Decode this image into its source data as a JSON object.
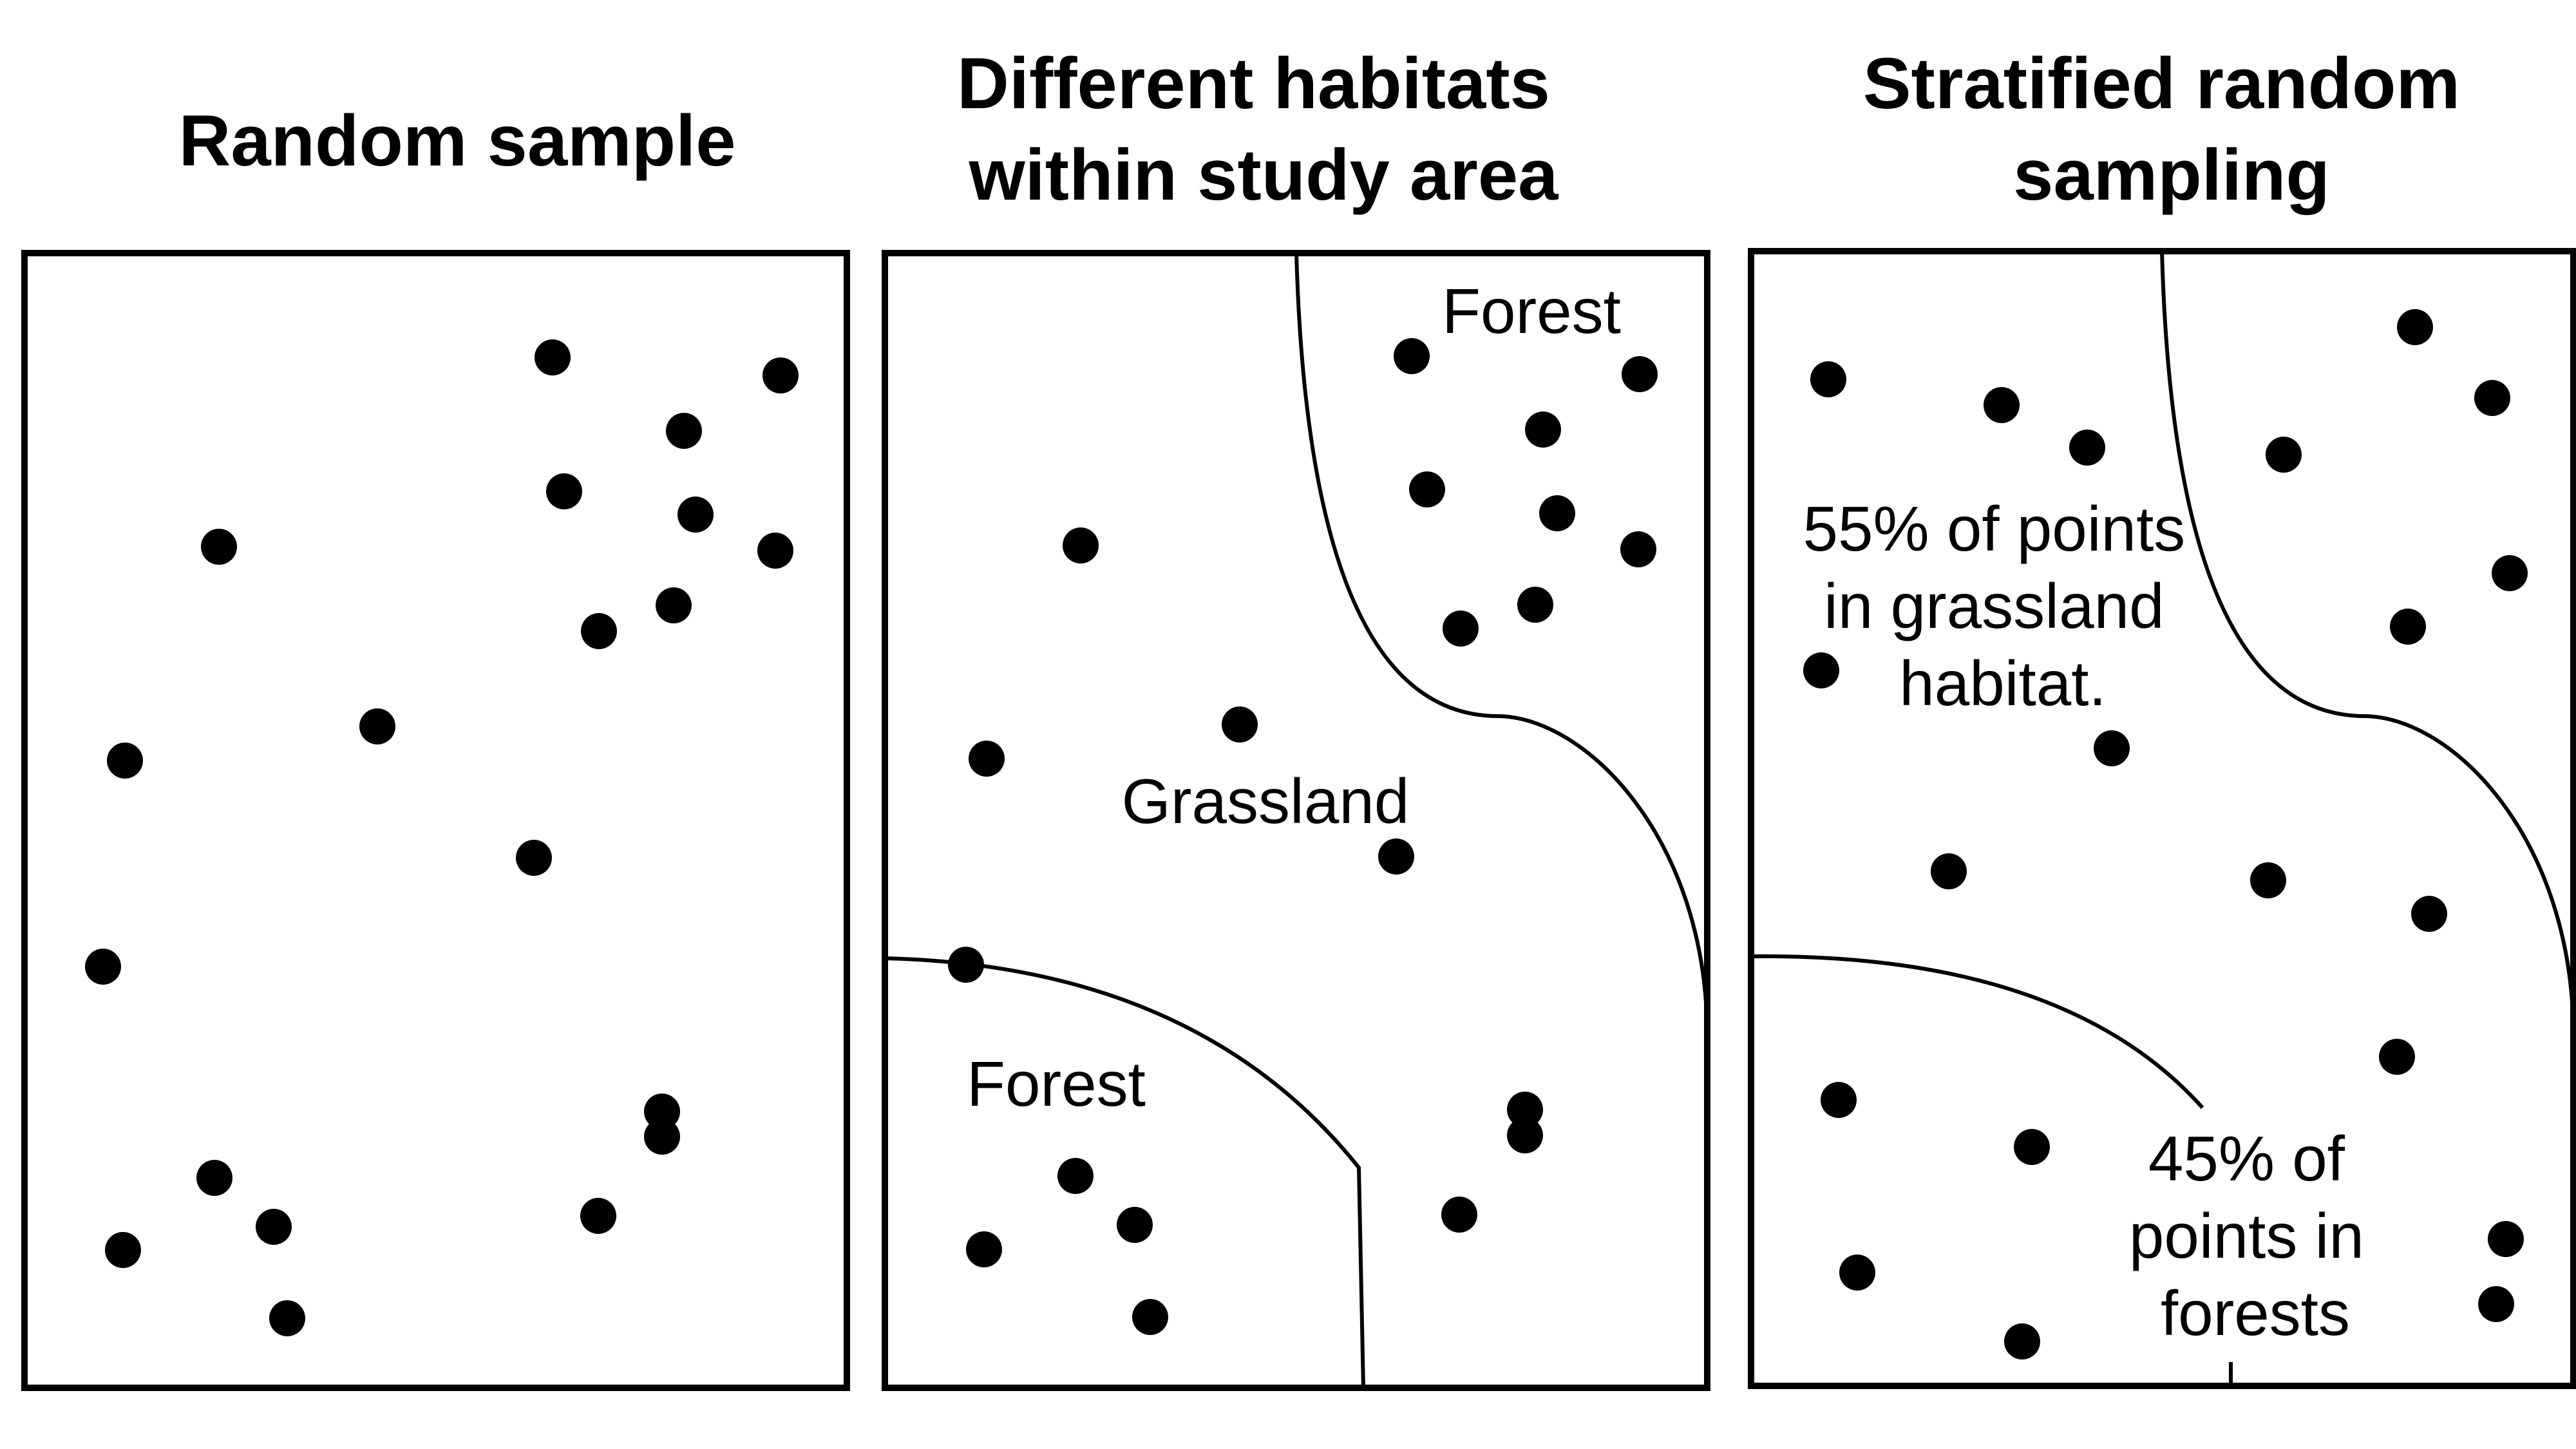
{
  "panels": [
    {
      "title": "Random sample",
      "labels": []
    },
    {
      "title_lines": [
        "Different habitats",
        "within study area"
      ],
      "labels": [
        "Forest",
        "Grassland",
        "Forest"
      ]
    },
    {
      "title_lines": [
        "Stratified random",
        "sampling"
      ],
      "labels_55": [
        "55% of points",
        "in grassland",
        "habitat."
      ],
      "labels_45": [
        "45% of",
        "points in",
        "forests"
      ]
    }
  ],
  "colors": {
    "ink": "#000000",
    "background": "#ffffff"
  }
}
